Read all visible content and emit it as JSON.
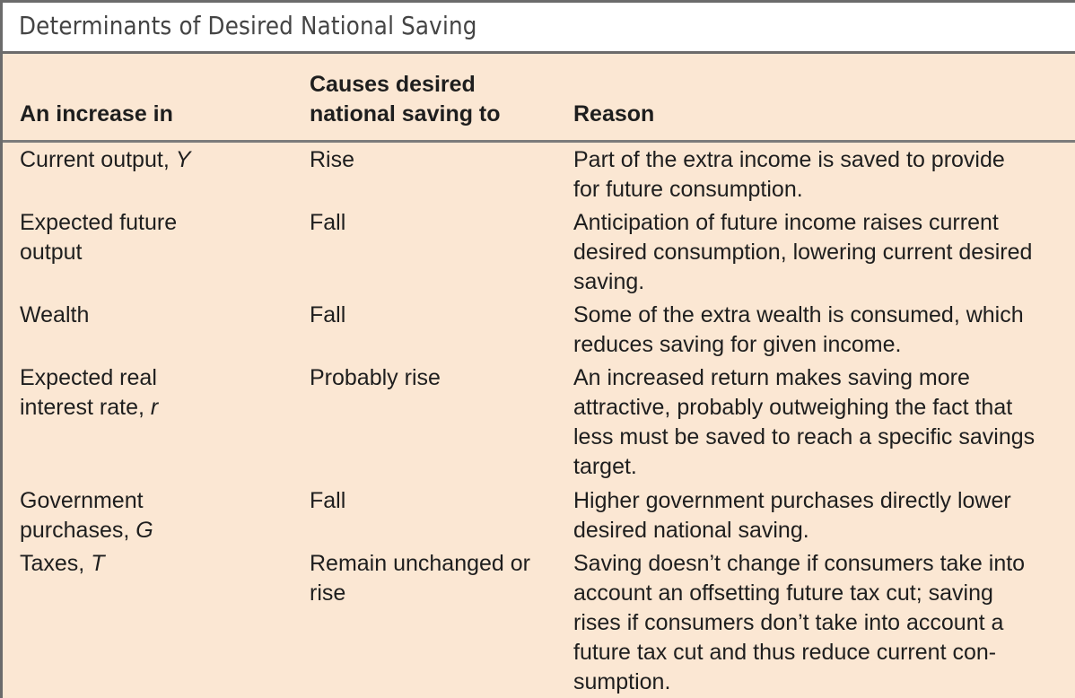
{
  "title": "Determinants of Desired National Saving",
  "headers": {
    "col1": "An increase in",
    "col2_line1": "Causes desired",
    "col2_line2": "national saving to",
    "col3": "Reason"
  },
  "rows": [
    {
      "factor": "Current output, ",
      "symbol": "Y",
      "effect": "Rise",
      "reason": "Part of the extra income is saved to provide\nfor future consumption."
    },
    {
      "factor": "Expected future output",
      "symbol": "",
      "effect": "Fall",
      "reason": "Anticipation of future income raises current\ndesired consumption, lowering current desired\nsaving."
    },
    {
      "factor": "Wealth",
      "symbol": "",
      "effect": "Fall",
      "reason": "Some of the extra wealth is consumed, which\nreduces saving for given income."
    },
    {
      "factor": "Expected real interest rate, ",
      "symbol": "r",
      "effect": "Probably rise",
      "reason": "An increased return makes saving more\nattractive, probably outweighing the fact that\nless must be saved to reach a specific savings\ntarget."
    },
    {
      "factor": "Government purchases, ",
      "symbol": "G",
      "effect": "Fall",
      "reason": "Higher government purchases directly lower\ndesired national saving."
    },
    {
      "factor": "Taxes, ",
      "symbol": "T",
      "effect": "Remain unchanged or rise",
      "reason": "Saving doesn’t change if consumers take into\naccount an offsetting future tax cut; saving\nrises if consumers don’t take into account a\nfuture tax cut and thus reduce current con-\nsumption."
    }
  ]
}
